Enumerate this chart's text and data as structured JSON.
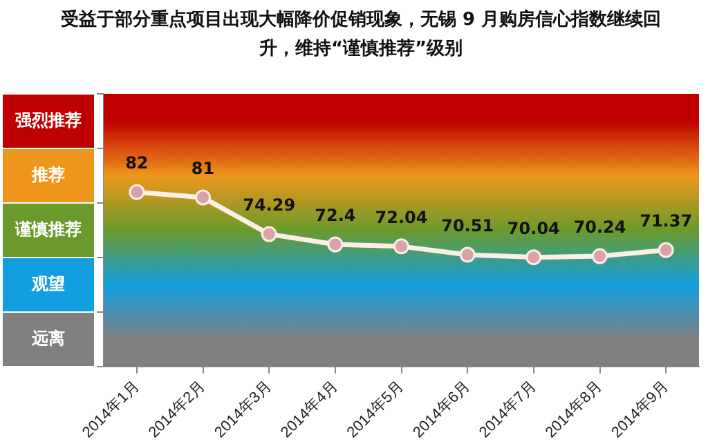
{
  "chart_data": {
    "type": "line",
    "title": "受益于部分重点项目出现大幅降价促销现象，无锡 9 月购房信心指数继续回升，维持“谨慎推荐”级别",
    "categories": [
      "2014年1月",
      "2014年2月",
      "2014年3月",
      "2014年4月",
      "2014年5月",
      "2014年6月",
      "2014年7月",
      "2014年8月",
      "2014年9月"
    ],
    "series": [
      {
        "color": "#fbeee6",
        "values": [
          82,
          81,
          74.29,
          72.4,
          72.04,
          70.51,
          70.04,
          70.24,
          71.37
        ]
      }
    ],
    "data_labels": true,
    "marker": "circle",
    "line_style": "solid",
    "grid": false,
    "legend": false,
    "tick_labels": "x",
    "ylim": [
      50,
      100
    ],
    "yticks": [
      {
        "value": 50,
        "label": null
      },
      {
        "value": 60,
        "label": null
      },
      {
        "value": 70,
        "label": null
      },
      {
        "value": 80,
        "label": null
      },
      {
        "value": 90,
        "label": null
      },
      {
        "value": 100,
        "label": null
      }
    ],
    "bands": [
      {
        "axis": "y",
        "from": 90,
        "to": 100,
        "label": "强烈推荐",
        "color": "#c00000"
      },
      {
        "axis": "y",
        "from": 80,
        "to": 90,
        "label": "推荐",
        "color": "#ee961c"
      },
      {
        "axis": "y",
        "from": 70,
        "to": 80,
        "label": "谨慎推荐",
        "color": "#6b9a2c"
      },
      {
        "axis": "y",
        "from": 60,
        "to": 70,
        "label": "观望",
        "color": "#129edf"
      },
      {
        "axis": "y",
        "from": 50,
        "to": 60,
        "label": "远离",
        "color": "#808080"
      }
    ]
  }
}
